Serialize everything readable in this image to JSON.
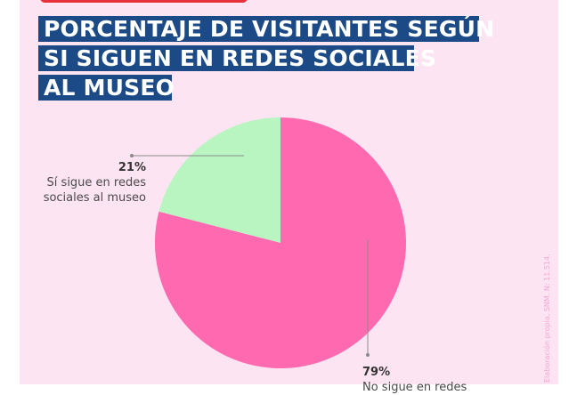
{
  "title_lines": [
    "PORCENTAJE DE VISITANTES SEGÚN",
    "SI SIGUEN EN REDES SOCIALES",
    "AL MUSEO"
  ],
  "source": "Elaboración propia, SNM. N: 11.514.",
  "colors": {
    "title_bg": "#1b4a86",
    "accent": "#e8303a",
    "background": "#fde4f2",
    "yes": "#b8f5c0",
    "no": "#ff69b0"
  },
  "chart_data": {
    "type": "pie",
    "title": "PORCENTAJE DE VISITANTES SEGÚN SI SIGUEN EN REDES SOCIALES AL MUSEO",
    "slices": [
      {
        "label": "Sí sigue en redes sociales al museo",
        "value": 21,
        "pct_label": "21%",
        "label_lines": [
          "Sí sigue en redes",
          "sociales al museo"
        ],
        "color": "#b8f5c0"
      },
      {
        "label": "No sigue en redes",
        "value": 79,
        "pct_label": "79%",
        "label_lines": [
          "No sigue en redes"
        ],
        "color": "#ff69b0"
      }
    ]
  }
}
